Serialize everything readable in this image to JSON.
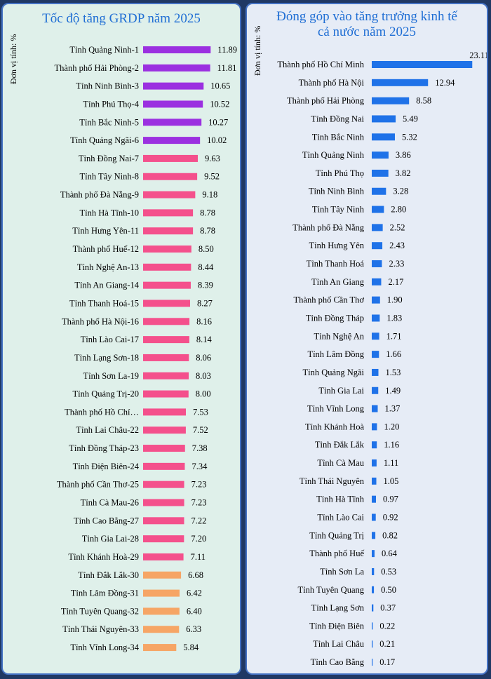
{
  "left": {
    "title": "Tốc độ tăng GRDP năm 2025",
    "unit_label": "Đơn vị tính: %"
  },
  "right": {
    "title_line1": "Đóng góp vào tăng trưởng kinh tế",
    "title_line2": "cả nước năm 2025",
    "unit_label": "Đơn vị tính: %"
  },
  "colors": {
    "purple": "#9b30e0",
    "pink": "#f4508c",
    "orange": "#f6a565",
    "blue": "#1f72e8"
  },
  "chart_data": [
    {
      "type": "bar",
      "orientation": "horizontal",
      "title": "Tốc độ tăng GRDP năm 2025",
      "ylabel": "Đơn vị tính: %",
      "categories": [
        "Tỉnh Quảng Ninh-1",
        "Thành phố Hải Phòng-2",
        "Tỉnh Ninh Bình-3",
        "Tỉnh Phú Thọ-4",
        "Tỉnh Bắc Ninh-5",
        "Tỉnh Quảng Ngãi-6",
        "Tỉnh Đồng Nai-7",
        "Tỉnh Tây Ninh-8",
        "Thành phố Đà Nẵng-9",
        "Tỉnh Hà Tĩnh-10",
        "Tỉnh Hưng Yên-11",
        "Thành phố Huế-12",
        "Tỉnh Nghệ An-13",
        "Tỉnh An Giang-14",
        "Tỉnh Thanh Hoá-15",
        "Thành phố Hà Nội-16",
        "Tỉnh Lào Cai-17",
        "Tỉnh Lạng Sơn-18",
        "Tỉnh Sơn La-19",
        "Tỉnh Quảng Trị-20",
        "Thành phố Hồ Chí…",
        "Tỉnh Lai Châu-22",
        "Tỉnh Đồng Tháp-23",
        "Tỉnh Điện Biên-24",
        "Thành phố Cần Thơ-25",
        "Tỉnh Cà Mau-26",
        "Tỉnh Cao Bằng-27",
        "Tỉnh Gia Lai-28",
        "Tỉnh Khánh Hoà-29",
        "Tỉnh Đắk Lắk-30",
        "Tỉnh Lâm Đồng-31",
        "Tỉnh Tuyên Quang-32",
        "Tỉnh Thái Nguyên-33",
        "Tỉnh Vĩnh Long-34"
      ],
      "values": [
        11.89,
        11.81,
        10.65,
        10.52,
        10.27,
        10.02,
        9.63,
        9.52,
        9.18,
        8.78,
        8.78,
        8.5,
        8.44,
        8.39,
        8.27,
        8.16,
        8.14,
        8.06,
        8.03,
        8.0,
        7.53,
        7.52,
        7.38,
        7.34,
        7.23,
        7.23,
        7.22,
        7.2,
        7.11,
        6.68,
        6.42,
        6.4,
        6.33,
        5.84
      ],
      "labels": [
        "11.89",
        "11.81",
        "10.65",
        "10.52",
        "10.27",
        "10.02",
        "9.63",
        "9.52",
        "9.18",
        "8.78",
        "8.78",
        "8.50",
        "8.44",
        "8.39",
        "8.27",
        "8.16",
        "8.14",
        "8.06",
        "8.03",
        "8.00",
        "7.53",
        "7.52",
        "7.38",
        "7.34",
        "7.23",
        "7.23",
        "7.22",
        "7.20",
        "7.11",
        "6.68",
        "6.42",
        "6.40",
        "6.33",
        "5.84"
      ],
      "color_groups": [
        "purple",
        "purple",
        "purple",
        "purple",
        "purple",
        "purple",
        "pink",
        "pink",
        "pink",
        "pink",
        "pink",
        "pink",
        "pink",
        "pink",
        "pink",
        "pink",
        "pink",
        "pink",
        "pink",
        "pink",
        "pink",
        "pink",
        "pink",
        "pink",
        "pink",
        "pink",
        "pink",
        "pink",
        "pink",
        "orange",
        "orange",
        "orange",
        "orange",
        "orange"
      ]
    },
    {
      "type": "bar",
      "orientation": "horizontal",
      "title": "Đóng góp vào tăng trưởng kinh tế cả nước năm 2025",
      "ylabel": "Đơn vị tính: %",
      "categories": [
        "Thành phố Hồ Chí Minh",
        "Thành phố Hà Nội",
        "Thành phố Hải Phòng",
        "Tỉnh Đồng Nai",
        "Tỉnh Bắc Ninh",
        "Tỉnh Quảng Ninh",
        "Tỉnh Phú Thọ",
        "Tỉnh Ninh Bình",
        "Tỉnh Tây Ninh",
        "Thành phố Đà Nẵng",
        "Tỉnh Hưng Yên",
        "Tỉnh Thanh Hoá",
        "Tỉnh An Giang",
        "Thành phố Cần Thơ",
        "Tỉnh Đồng Tháp",
        "Tỉnh Nghệ An",
        "Tỉnh Lâm Đồng",
        "Tỉnh Quảng Ngãi",
        "Tỉnh Gia Lai",
        "Tỉnh Vĩnh Long",
        "Tỉnh Khánh Hoà",
        "Tỉnh Đắk Lắk",
        "Tỉnh Cà Mau",
        "Tỉnh Thái Nguyên",
        "Tỉnh Hà Tĩnh",
        "Tỉnh Lào Cai",
        "Tỉnh Quảng Trị",
        "Thành phố Huế",
        "Tỉnh Sơn La",
        "Tỉnh Tuyên Quang",
        "Tỉnh Lạng Sơn",
        "Tỉnh Điện Biên",
        "Tỉnh Lai Châu",
        "Tỉnh Cao Bằng"
      ],
      "values": [
        23.11,
        12.94,
        8.58,
        5.49,
        5.32,
        3.86,
        3.82,
        3.28,
        2.8,
        2.52,
        2.43,
        2.33,
        2.17,
        1.9,
        1.83,
        1.71,
        1.66,
        1.53,
        1.49,
        1.37,
        1.2,
        1.16,
        1.11,
        1.05,
        0.97,
        0.92,
        0.82,
        0.64,
        0.53,
        0.5,
        0.37,
        0.22,
        0.21,
        0.17
      ],
      "labels": [
        "23.11",
        "12.94",
        "8.58",
        "5.49",
        "5.32",
        "3.86",
        "3.82",
        "3.28",
        "2.80",
        "2.52",
        "2.43",
        "2.33",
        "2.17",
        "1.90",
        "1.83",
        "1.71",
        "1.66",
        "1.53",
        "1.49",
        "1.37",
        "1.20",
        "1.16",
        "1.11",
        "1.05",
        "0.97",
        "0.92",
        "0.82",
        "0.64",
        "0.53",
        "0.50",
        "0.37",
        "0.22",
        "0.21",
        "0.17"
      ],
      "color_groups": [
        "blue",
        "blue",
        "blue",
        "blue",
        "blue",
        "blue",
        "blue",
        "blue",
        "blue",
        "blue",
        "blue",
        "blue",
        "blue",
        "blue",
        "blue",
        "blue",
        "blue",
        "blue",
        "blue",
        "blue",
        "blue",
        "blue",
        "blue",
        "blue",
        "blue",
        "blue",
        "blue",
        "blue",
        "blue",
        "blue",
        "blue",
        "blue",
        "blue",
        "blue"
      ]
    }
  ]
}
